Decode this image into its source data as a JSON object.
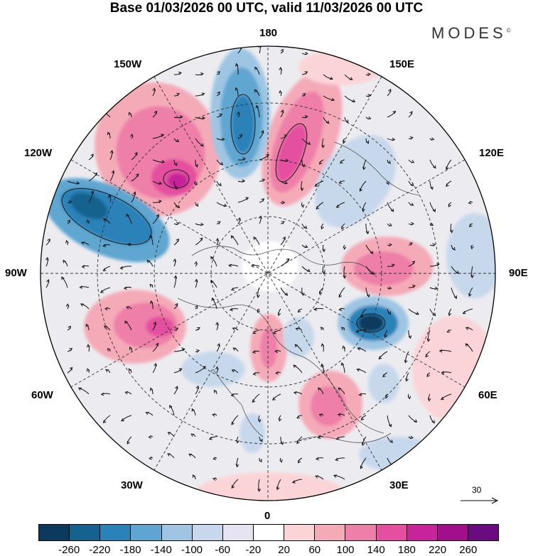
{
  "title": "Base 01/03/2026 00 UTC, valid 11/03/2026 00 UTC",
  "brand": "MODES",
  "brand_mark": "©",
  "longitude_labels": {
    "top": "180",
    "bottom": "0",
    "left": "90W",
    "right": "90E",
    "nw_upper": "150W",
    "nw_lower": "120W",
    "ne_upper": "150E",
    "ne_lower": "120E",
    "sw_upper": "60W",
    "sw_lower": "30W",
    "se_upper": "60E",
    "se_lower": "30E"
  },
  "reference_vector": "30",
  "colorbar": {
    "colors": [
      "#0b3a5e",
      "#16628e",
      "#2b82b9",
      "#5ea6d1",
      "#9ec6e3",
      "#c7d8ec",
      "#e6e4f1",
      "#ffffff",
      "#fbd4d8",
      "#f5aab8",
      "#ee7fa8",
      "#e44f9f",
      "#c8239a",
      "#a20f8d",
      "#6c0a80"
    ],
    "ticks": [
      "-260",
      "-220",
      "-180",
      "-140",
      "-100",
      "-60",
      "-20",
      "20",
      "60",
      "100",
      "140",
      "180",
      "220",
      "260"
    ]
  }
}
